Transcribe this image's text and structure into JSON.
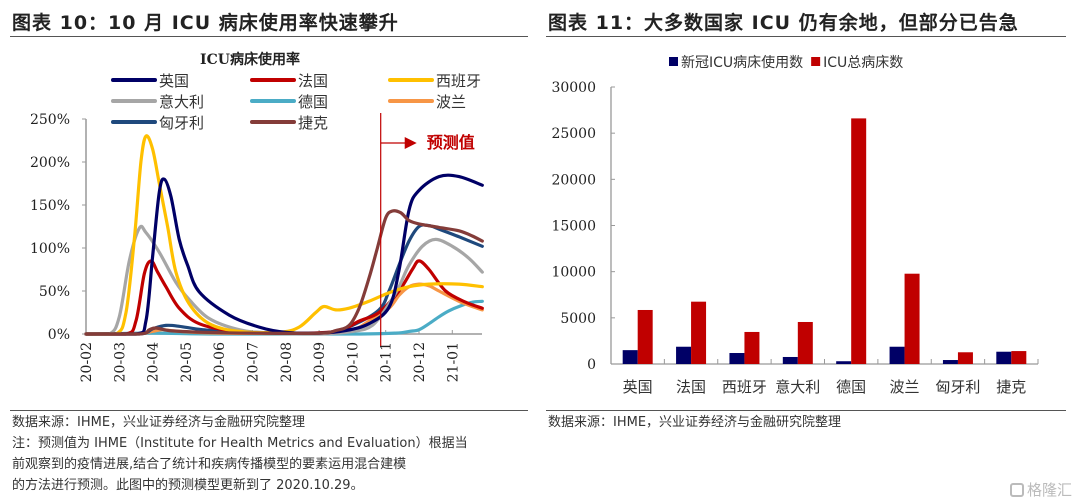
{
  "left_panel": {
    "title": "图表 10：10 月 ICU 病床使用率快速攀升",
    "source": "数据来源：IHME，兴业证券经济与金融研究院整理",
    "note_lines": [
      "注：预测值为 IHME（Institute for Health Metrics and Evaluation）根据当",
      "前观察到的疫情进展,结合了统计和疾病传播模型的要素运用混合建模",
      "的方法进行预测。此图中的预测模型更新到了 2020.10.29。"
    ]
  },
  "right_panel": {
    "title": "图表 11：大多数国家 ICU 仍有余地，但部分已告急",
    "source": "数据来源：IHME，兴业证券经济与金融研究院整理"
  },
  "watermark": "格隆汇",
  "chart_data": [
    {
      "type": "line",
      "title": "ICU病床使用率",
      "xlabel": "",
      "ylabel": "",
      "x_tick_labels": [
        "20-02",
        "20-03",
        "20-04",
        "20-05",
        "20-06",
        "20-07",
        "20-08",
        "20-09",
        "20-10",
        "20-11",
        "20-12",
        "21-01"
      ],
      "x_unit": "months since 2020-02 tick",
      "xlim": [
        0,
        11.9
      ],
      "y_tick_labels": [
        "0%",
        "50%",
        "100%",
        "150%",
        "200%",
        "250%"
      ],
      "ylim": [
        0,
        250
      ],
      "grid": false,
      "legend_position": "top",
      "forecast_marker": {
        "x": 8.85,
        "label": "预测值",
        "color": "#C00000"
      },
      "series": [
        {
          "name": "英国",
          "color": "#000066",
          "points": [
            [
              0,
              0
            ],
            [
              1.5,
              0
            ],
            [
              1.8,
              15
            ],
            [
              2.0,
              90
            ],
            [
              2.2,
              165
            ],
            [
              2.35,
              180
            ],
            [
              2.55,
              160
            ],
            [
              2.8,
              110
            ],
            [
              3.05,
              80
            ],
            [
              3.4,
              49
            ],
            [
              4.3,
              22
            ],
            [
              5.2,
              8
            ],
            [
              6.0,
              2
            ],
            [
              7.0,
              1
            ],
            [
              7.8,
              4
            ],
            [
              8.5,
              12
            ],
            [
              9.1,
              31
            ],
            [
              9.4,
              74
            ],
            [
              9.7,
              144
            ],
            [
              10.0,
              167
            ],
            [
              10.6,
              183
            ],
            [
              11.2,
              183
            ],
            [
              11.9,
              173
            ]
          ]
        },
        {
          "name": "法国",
          "color": "#C00000",
          "points": [
            [
              0,
              0
            ],
            [
              1.2,
              0
            ],
            [
              1.5,
              15
            ],
            [
              1.75,
              70
            ],
            [
              1.95,
              85
            ],
            [
              2.15,
              72
            ],
            [
              2.4,
              55
            ],
            [
              2.8,
              30
            ],
            [
              3.4,
              12
            ],
            [
              4.5,
              3
            ],
            [
              6.0,
              1
            ],
            [
              7.5,
              3
            ],
            [
              8.2,
              15
            ],
            [
              8.8,
              25
            ],
            [
              9.4,
              50
            ],
            [
              9.8,
              75
            ],
            [
              10.0,
              85
            ],
            [
              10.3,
              75
            ],
            [
              10.8,
              50
            ],
            [
              11.4,
              37
            ],
            [
              11.9,
              30
            ]
          ]
        },
        {
          "name": "西班牙",
          "color": "#FFC000",
          "points": [
            [
              0,
              0
            ],
            [
              0.9,
              0
            ],
            [
              1.2,
              25
            ],
            [
              1.45,
              110
            ],
            [
              1.65,
              200
            ],
            [
              1.8,
              230
            ],
            [
              2.0,
              215
            ],
            [
              2.2,
              175
            ],
            [
              2.45,
              125
            ],
            [
              2.7,
              72
            ],
            [
              3.1,
              35
            ],
            [
              3.7,
              12
            ],
            [
              4.6,
              3
            ],
            [
              5.8,
              2
            ],
            [
              6.4,
              8
            ],
            [
              6.9,
              25
            ],
            [
              7.15,
              32
            ],
            [
              7.5,
              28
            ],
            [
              7.9,
              30
            ],
            [
              8.5,
              38
            ],
            [
              9.1,
              48
            ],
            [
              9.7,
              55
            ],
            [
              10.3,
              58
            ],
            [
              11.2,
              58
            ],
            [
              11.9,
              55
            ]
          ]
        },
        {
          "name": "意大利",
          "color": "#A6A6A6",
          "points": [
            [
              0,
              0
            ],
            [
              0.7,
              0
            ],
            [
              1.0,
              20
            ],
            [
              1.3,
              85
            ],
            [
              1.6,
              123
            ],
            [
              1.8,
              118
            ],
            [
              2.2,
              95
            ],
            [
              2.7,
              60
            ],
            [
              3.1,
              40
            ],
            [
              3.7,
              18
            ],
            [
              4.6,
              5
            ],
            [
              5.5,
              1
            ],
            [
              7.0,
              0
            ],
            [
              8.0,
              3
            ],
            [
              8.6,
              10
            ],
            [
              9.1,
              35
            ],
            [
              9.4,
              55
            ],
            [
              9.7,
              80
            ],
            [
              10.1,
              102
            ],
            [
              10.5,
              110
            ],
            [
              11.0,
              102
            ],
            [
              11.5,
              88
            ],
            [
              11.9,
              72
            ]
          ]
        },
        {
          "name": "德国",
          "color": "#4BACC6",
          "points": [
            [
              0,
              0
            ],
            [
              2.0,
              1
            ],
            [
              4.0,
              0
            ],
            [
              8.0,
              0
            ],
            [
              9.3,
              1
            ],
            [
              9.7,
              3
            ],
            [
              10.0,
              5
            ],
            [
              10.3,
              12
            ],
            [
              10.6,
              20
            ],
            [
              10.9,
              27
            ],
            [
              11.2,
              32
            ],
            [
              11.6,
              37
            ],
            [
              11.9,
              38
            ]
          ]
        },
        {
          "name": "波兰",
          "color": "#F79646",
          "points": [
            [
              0,
              0
            ],
            [
              1.5,
              0
            ],
            [
              2.0,
              3
            ],
            [
              2.3,
              5
            ],
            [
              2.8,
              3
            ],
            [
              4.0,
              1
            ],
            [
              7.0,
              1
            ],
            [
              8.0,
              5
            ],
            [
              8.5,
              15
            ],
            [
              9.1,
              30
            ],
            [
              9.4,
              45
            ],
            [
              9.7,
              55
            ],
            [
              10.0,
              58
            ],
            [
              10.3,
              56
            ],
            [
              10.6,
              50
            ],
            [
              11.2,
              38
            ],
            [
              11.6,
              32
            ],
            [
              11.9,
              28
            ]
          ]
        },
        {
          "name": "匈牙利",
          "color": "#1F497D",
          "points": [
            [
              0,
              0
            ],
            [
              1.6,
              0
            ],
            [
              2.0,
              6
            ],
            [
              2.4,
              10
            ],
            [
              2.8,
              9
            ],
            [
              3.5,
              5
            ],
            [
              4.5,
              3
            ],
            [
              6.0,
              1
            ],
            [
              7.3,
              2
            ],
            [
              8.0,
              10
            ],
            [
              8.8,
              28
            ],
            [
              9.1,
              50
            ],
            [
              9.4,
              80
            ],
            [
              9.7,
              108
            ],
            [
              10.0,
              125
            ],
            [
              10.3,
              126
            ],
            [
              10.6,
              122
            ],
            [
              11.2,
              113
            ],
            [
              11.9,
              102
            ]
          ]
        },
        {
          "name": "捷克",
          "color": "#843C39",
          "points": [
            [
              0,
              0
            ],
            [
              1.6,
              0
            ],
            [
              1.9,
              5
            ],
            [
              2.1,
              7
            ],
            [
              2.5,
              4
            ],
            [
              3.5,
              2
            ],
            [
              5.0,
              1
            ],
            [
              7.0,
              1
            ],
            [
              7.5,
              4
            ],
            [
              7.9,
              10
            ],
            [
              8.2,
              30
            ],
            [
              8.5,
              65
            ],
            [
              8.75,
              100
            ],
            [
              9.0,
              135
            ],
            [
              9.2,
              143
            ],
            [
              9.45,
              141
            ],
            [
              9.7,
              132
            ],
            [
              10.0,
              128
            ],
            [
              10.6,
              124
            ],
            [
              11.2,
              120
            ],
            [
              11.6,
              114
            ],
            [
              11.9,
              108
            ]
          ]
        }
      ]
    },
    {
      "type": "bar",
      "title": "",
      "xlabel": "",
      "ylabel": "",
      "categories": [
        "英国",
        "法国",
        "西班牙",
        "意大利",
        "德国",
        "波兰",
        "匈牙利",
        "捷克"
      ],
      "ylim": [
        0,
        30000
      ],
      "y_tick_labels": [
        "0",
        "5000",
        "10000",
        "15000",
        "20000",
        "25000",
        "30000"
      ],
      "grid": false,
      "legend_position": "top",
      "series": [
        {
          "name": "新冠ICU病床使用数",
          "color": "#000066",
          "values": [
            1500,
            1870,
            1190,
            760,
            300,
            1870,
            430,
            1330
          ]
        },
        {
          "name": "ICU总病床数",
          "color": "#C00000",
          "values": [
            5850,
            6750,
            3470,
            4550,
            26600,
            9780,
            1270,
            1400
          ]
        }
      ]
    }
  ]
}
